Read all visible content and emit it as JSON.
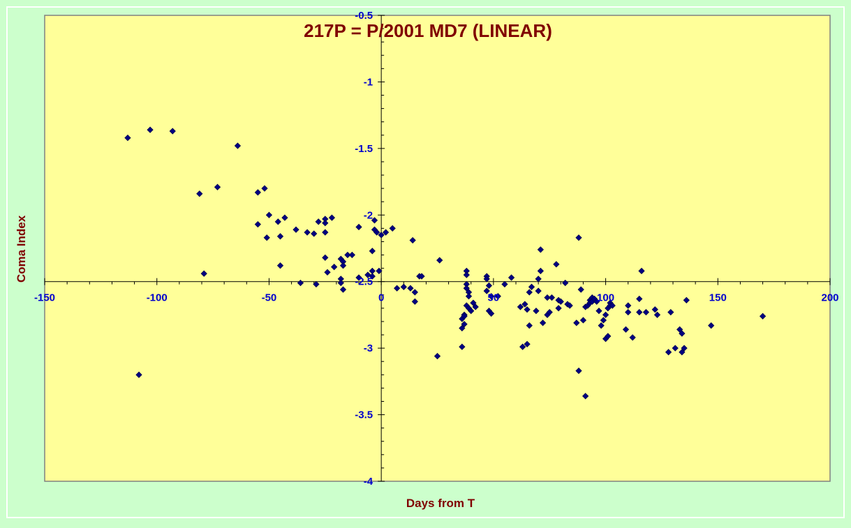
{
  "chart_data": {
    "type": "scatter",
    "title": "217P = P/2001 MD7 (LINEAR)",
    "xlabel": "Days from T",
    "ylabel": "Coma Index",
    "xlim": [
      -150,
      200
    ],
    "ylim": [
      -4,
      -0.5
    ],
    "y_reversed": true,
    "x_ticks": [
      -150,
      -100,
      -50,
      0,
      50,
      100,
      150,
      200
    ],
    "y_ticks": [
      -0.5,
      -1,
      -1.5,
      -2,
      -2.5,
      -3,
      -3.5,
      -4
    ],
    "x_tick_labels": [
      "-150",
      "-100",
      "-50",
      "0",
      "50",
      "100",
      "150",
      "200"
    ],
    "y_tick_labels": [
      "-0.5",
      "-1",
      "-1.5",
      "-2",
      "-2.5",
      "-3",
      "-3.5",
      "-4"
    ],
    "grid": false,
    "legend": "none",
    "colors": {
      "background": "#ccffcc",
      "plot_area": "#ffff99",
      "marker": "#000080",
      "text": "#800000",
      "ticks": "#0000cc"
    },
    "points": [
      [
        -113,
        -1.42
      ],
      [
        -103,
        -1.36
      ],
      [
        -93,
        -1.37
      ],
      [
        -108,
        -3.2
      ],
      [
        -64,
        -1.48
      ],
      [
        -81,
        -1.84
      ],
      [
        -73,
        -1.79
      ],
      [
        -79,
        -2.44
      ],
      [
        -55,
        -1.83
      ],
      [
        -52,
        -1.8
      ],
      [
        -50,
        -2.0
      ],
      [
        -55,
        -2.07
      ],
      [
        -46,
        -2.05
      ],
      [
        -43,
        -2.02
      ],
      [
        -51,
        -2.17
      ],
      [
        -45,
        -2.16
      ],
      [
        -38,
        -2.11
      ],
      [
        -33,
        -2.13
      ],
      [
        -30,
        -2.14
      ],
      [
        -28,
        -2.05
      ],
      [
        -25,
        -2.03
      ],
      [
        -22,
        -2.02
      ],
      [
        -25,
        -2.06
      ],
      [
        -25,
        -2.13
      ],
      [
        -25,
        -2.32
      ],
      [
        -45,
        -2.38
      ],
      [
        -36,
        -2.51
      ],
      [
        -29,
        -2.52
      ],
      [
        -24,
        -2.43
      ],
      [
        -21,
        -2.39
      ],
      [
        -18,
        -2.33
      ],
      [
        -17,
        -2.35
      ],
      [
        -17,
        -2.38
      ],
      [
        -15,
        -2.3
      ],
      [
        -13,
        -2.3
      ],
      [
        -18,
        -2.48
      ],
      [
        -18,
        -2.51
      ],
      [
        -17,
        -2.56
      ],
      [
        -10,
        -2.09
      ],
      [
        -10,
        -2.47
      ],
      [
        -3,
        -2.04
      ],
      [
        -3,
        -2.11
      ],
      [
        -2,
        -2.13
      ],
      [
        0,
        -2.15
      ],
      [
        2,
        -2.13
      ],
      [
        5,
        -2.1
      ],
      [
        -4,
        -2.27
      ],
      [
        -4,
        -2.42
      ],
      [
        -1,
        -2.42
      ],
      [
        -6,
        -2.45
      ],
      [
        -4,
        -2.46
      ],
      [
        7,
        -2.55
      ],
      [
        10,
        -2.54
      ],
      [
        13,
        -2.55
      ],
      [
        15,
        -2.58
      ],
      [
        15,
        -2.65
      ],
      [
        14,
        -2.19
      ],
      [
        17,
        -2.46
      ],
      [
        18,
        -2.46
      ],
      [
        26,
        -2.34
      ],
      [
        25,
        -3.06
      ],
      [
        38,
        -2.42
      ],
      [
        38,
        -2.45
      ],
      [
        38,
        -2.52
      ],
      [
        38,
        -2.55
      ],
      [
        39,
        -2.58
      ],
      [
        39,
        -2.61
      ],
      [
        38,
        -2.68
      ],
      [
        39,
        -2.7
      ],
      [
        40,
        -2.72
      ],
      [
        42,
        -2.69
      ],
      [
        41,
        -2.66
      ],
      [
        36,
        -2.78
      ],
      [
        37,
        -2.75
      ],
      [
        37,
        -2.76
      ],
      [
        36,
        -2.85
      ],
      [
        37,
        -2.82
      ],
      [
        36,
        -2.99
      ],
      [
        47,
        -2.46
      ],
      [
        47,
        -2.48
      ],
      [
        48,
        -2.53
      ],
      [
        47,
        -2.57
      ],
      [
        49,
        -2.61
      ],
      [
        48,
        -2.72
      ],
      [
        49,
        -2.74
      ],
      [
        52,
        -2.61
      ],
      [
        55,
        -2.52
      ],
      [
        58,
        -2.47
      ],
      [
        62,
        -2.69
      ],
      [
        64,
        -2.67
      ],
      [
        65,
        -2.71
      ],
      [
        63,
        -2.99
      ],
      [
        65,
        -2.97
      ],
      [
        66,
        -2.83
      ],
      [
        69,
        -2.72
      ],
      [
        66,
        -2.58
      ],
      [
        67,
        -2.54
      ],
      [
        70,
        -2.57
      ],
      [
        70,
        -2.48
      ],
      [
        71,
        -2.42
      ],
      [
        71,
        -2.26
      ],
      [
        74,
        -2.62
      ],
      [
        76,
        -2.62
      ],
      [
        78,
        -2.37
      ],
      [
        79,
        -2.64
      ],
      [
        72,
        -2.81
      ],
      [
        74,
        -2.75
      ],
      [
        75,
        -2.73
      ],
      [
        79,
        -2.7
      ],
      [
        80,
        -2.65
      ],
      [
        82,
        -2.51
      ],
      [
        83,
        -2.67
      ],
      [
        84,
        -2.68
      ],
      [
        87,
        -2.81
      ],
      [
        88,
        -2.17
      ],
      [
        89,
        -2.56
      ],
      [
        90,
        -2.79
      ],
      [
        91,
        -2.69
      ],
      [
        92,
        -2.68
      ],
      [
        93,
        -2.64
      ],
      [
        93,
        -2.66
      ],
      [
        94,
        -2.62
      ],
      [
        94,
        -2.65
      ],
      [
        95,
        -2.63
      ],
      [
        96,
        -2.65
      ],
      [
        97,
        -2.72
      ],
      [
        98,
        -2.83
      ],
      [
        99,
        -2.79
      ],
      [
        100,
        -2.75
      ],
      [
        101,
        -2.7
      ],
      [
        102,
        -2.66
      ],
      [
        102,
        -2.68
      ],
      [
        103,
        -2.68
      ],
      [
        100,
        -2.93
      ],
      [
        101,
        -2.91
      ],
      [
        88,
        -3.17
      ],
      [
        91,
        -3.36
      ],
      [
        110,
        -2.68
      ],
      [
        110,
        -2.73
      ],
      [
        109,
        -2.86
      ],
      [
        112,
        -2.92
      ],
      [
        115,
        -2.63
      ],
      [
        116,
        -2.42
      ],
      [
        115,
        -2.73
      ],
      [
        118,
        -2.73
      ],
      [
        122,
        -2.71
      ],
      [
        123,
        -2.75
      ],
      [
        129,
        -2.73
      ],
      [
        131,
        -3.0
      ],
      [
        134,
        -3.03
      ],
      [
        128,
        -3.03
      ],
      [
        133,
        -2.86
      ],
      [
        134,
        -2.89
      ],
      [
        135,
        -3.0
      ],
      [
        136,
        -2.64
      ],
      [
        147,
        -2.83
      ],
      [
        170,
        -2.76
      ]
    ]
  }
}
